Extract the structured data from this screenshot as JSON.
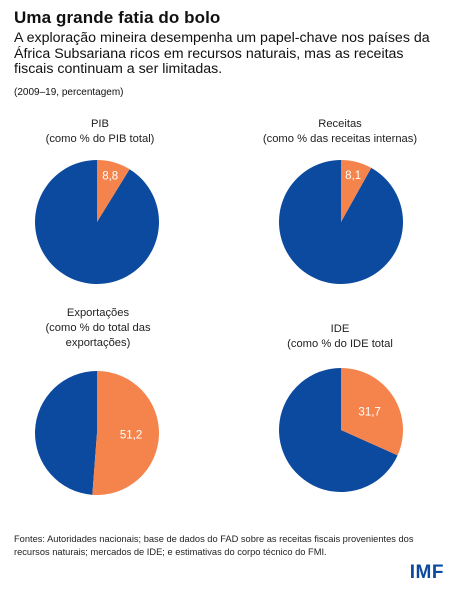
{
  "header": {
    "title": "Uma grande fatia do bolo",
    "subtitle": "A exploração mineira desempenha um papel-chave nos países da África Subsariana ricos em recursos naturais, mas as receitas fiscais continuam a ser limitadas.",
    "period": "(2009–19, percentagem)"
  },
  "colors": {
    "remainder": "#0b4a9e",
    "share": "#f4844c",
    "share_label": "#ffffff"
  },
  "chart_data": [
    {
      "type": "pie",
      "title": "PIB",
      "subtitle": "(como % do PIB total)",
      "share_value": 8.8,
      "share_label": "8,8",
      "remainder_value": 91.2
    },
    {
      "type": "pie",
      "title": "Receitas",
      "subtitle": "(como % das receitas internas)",
      "share_value": 8.1,
      "share_label": "8,1",
      "remainder_value": 91.9
    },
    {
      "type": "pie",
      "title": "Exportações",
      "subtitle": "(como % do total das exportações)",
      "share_value": 51.2,
      "share_label": "51,2",
      "remainder_value": 48.8
    },
    {
      "type": "pie",
      "title": "IDE",
      "subtitle": "(como % do IDE total",
      "share_value": 31.7,
      "share_label": "31,7",
      "remainder_value": 68.3
    }
  ],
  "footer": {
    "source": "Fontes: Autoridades nacionais; base de dados do FAD sobre as receitas fiscais provenientes dos recursos naturais; mercados de IDE; e estimativas do corpo técnico do FMI.",
    "logo": "IMF"
  }
}
